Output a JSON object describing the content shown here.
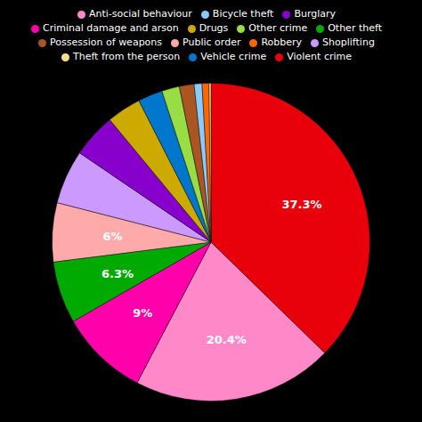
{
  "chart_data": {
    "type": "pie",
    "categories": [
      "Violent crime",
      "Anti-social behaviour",
      "Criminal damage and arson",
      "Other theft",
      "Public order",
      "Shoplifting",
      "Burglary",
      "Drugs",
      "Vehicle crime",
      "Other crime",
      "Possession of weapons",
      "Bicycle theft",
      "Robbery",
      "Theft from the person"
    ],
    "values": [
      37.3,
      20.4,
      9.0,
      6.3,
      6.0,
      5.5,
      4.5,
      3.5,
      2.5,
      1.8,
      1.5,
      0.8,
      0.7,
      0.2
    ],
    "value_labels": [
      "37.3%",
      "20.4%",
      "9%",
      "6.3%",
      "6%",
      null,
      null,
      null,
      null,
      null,
      null,
      null,
      null,
      null
    ],
    "colors": [
      "#e8000a",
      "#ff88c8",
      "#ff00aa",
      "#00aa00",
      "#ffaaaa",
      "#cc99ff",
      "#8800cc",
      "#ccaa00",
      "#0077cc",
      "#99dd44",
      "#aa5522",
      "#88ccff",
      "#ff6600",
      "#ffdd88"
    ],
    "legend": "top"
  }
}
